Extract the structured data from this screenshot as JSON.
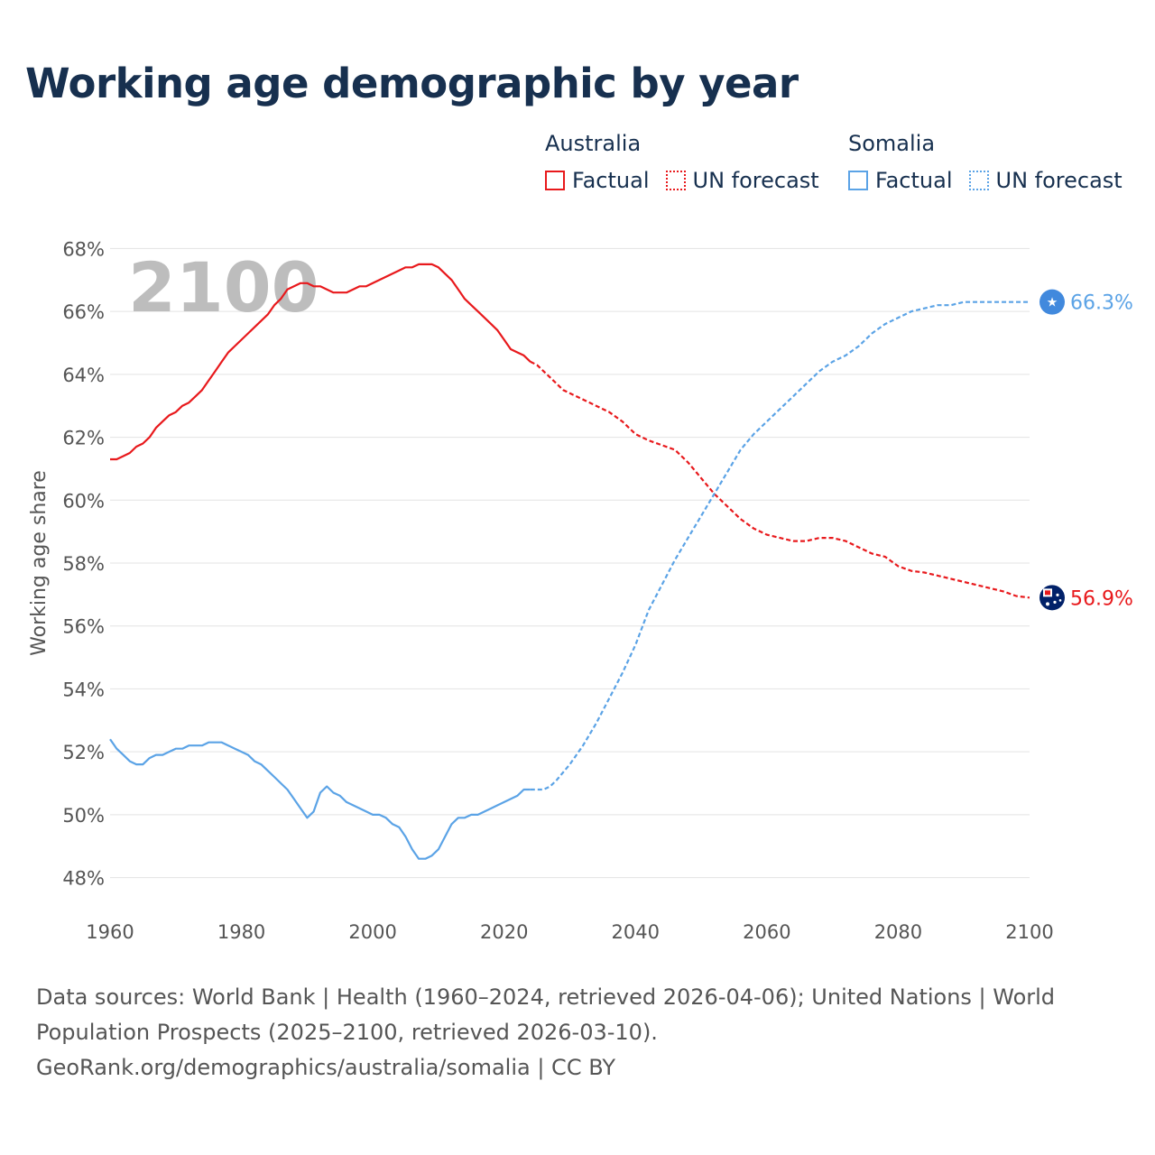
{
  "title": "Working age demographic by year",
  "legend": {
    "groups": [
      {
        "name": "Australia",
        "color": "#e8191c",
        "factual_label": "Factual",
        "forecast_label": "UN forecast"
      },
      {
        "name": "Somalia",
        "color": "#5ba3e6",
        "factual_label": "Factual",
        "forecast_label": "UN forecast"
      }
    ]
  },
  "chart_data": {
    "type": "line",
    "title": "Working age demographic by year",
    "xlabel": "",
    "ylabel": "Working age share",
    "xlim": [
      1960,
      2100
    ],
    "ylim": [
      47.5,
      68.5
    ],
    "x_ticks": [
      1960,
      1980,
      2000,
      2020,
      2040,
      2060,
      2080,
      2100
    ],
    "y_ticks": [
      48,
      50,
      52,
      54,
      56,
      58,
      60,
      62,
      64,
      66,
      68
    ],
    "y_tick_labels": [
      "48%",
      "50%",
      "52%",
      "54%",
      "56%",
      "58%",
      "60%",
      "62%",
      "64%",
      "66%",
      "68%"
    ],
    "grid": true,
    "year_watermark": "2100",
    "factual_end_year": 2024,
    "series": [
      {
        "name": "Australia",
        "color": "#e8191c",
        "end_label": "56.9%",
        "end_icon": "australia-flag-icon",
        "points": [
          [
            1960,
            61.3
          ],
          [
            1961,
            61.3
          ],
          [
            1962,
            61.4
          ],
          [
            1963,
            61.5
          ],
          [
            1964,
            61.7
          ],
          [
            1965,
            61.8
          ],
          [
            1966,
            62.0
          ],
          [
            1967,
            62.3
          ],
          [
            1968,
            62.5
          ],
          [
            1969,
            62.7
          ],
          [
            1970,
            62.8
          ],
          [
            1971,
            63.0
          ],
          [
            1972,
            63.1
          ],
          [
            1973,
            63.3
          ],
          [
            1974,
            63.5
          ],
          [
            1975,
            63.8
          ],
          [
            1976,
            64.1
          ],
          [
            1977,
            64.4
          ],
          [
            1978,
            64.7
          ],
          [
            1979,
            64.9
          ],
          [
            1980,
            65.1
          ],
          [
            1981,
            65.3
          ],
          [
            1982,
            65.5
          ],
          [
            1983,
            65.7
          ],
          [
            1984,
            65.9
          ],
          [
            1985,
            66.2
          ],
          [
            1986,
            66.4
          ],
          [
            1987,
            66.7
          ],
          [
            1988,
            66.8
          ],
          [
            1989,
            66.9
          ],
          [
            1990,
            66.9
          ],
          [
            1991,
            66.8
          ],
          [
            1992,
            66.8
          ],
          [
            1993,
            66.7
          ],
          [
            1994,
            66.6
          ],
          [
            1995,
            66.6
          ],
          [
            1996,
            66.6
          ],
          [
            1997,
            66.7
          ],
          [
            1998,
            66.8
          ],
          [
            1999,
            66.8
          ],
          [
            2000,
            66.9
          ],
          [
            2001,
            67.0
          ],
          [
            2002,
            67.1
          ],
          [
            2003,
            67.2
          ],
          [
            2004,
            67.3
          ],
          [
            2005,
            67.4
          ],
          [
            2006,
            67.4
          ],
          [
            2007,
            67.5
          ],
          [
            2008,
            67.5
          ],
          [
            2009,
            67.5
          ],
          [
            2010,
            67.4
          ],
          [
            2011,
            67.2
          ],
          [
            2012,
            67.0
          ],
          [
            2013,
            66.7
          ],
          [
            2014,
            66.4
          ],
          [
            2015,
            66.2
          ],
          [
            2016,
            66.0
          ],
          [
            2017,
            65.8
          ],
          [
            2018,
            65.6
          ],
          [
            2019,
            65.4
          ],
          [
            2020,
            65.1
          ],
          [
            2021,
            64.8
          ],
          [
            2022,
            64.7
          ],
          [
            2023,
            64.6
          ],
          [
            2024,
            64.4
          ],
          [
            2025,
            64.3
          ],
          [
            2026,
            64.1
          ],
          [
            2027,
            63.9
          ],
          [
            2028,
            63.7
          ],
          [
            2029,
            63.5
          ],
          [
            2030,
            63.4
          ],
          [
            2032,
            63.2
          ],
          [
            2034,
            63.0
          ],
          [
            2036,
            62.8
          ],
          [
            2038,
            62.5
          ],
          [
            2040,
            62.1
          ],
          [
            2042,
            61.9
          ],
          [
            2044,
            61.75
          ],
          [
            2046,
            61.6
          ],
          [
            2048,
            61.2
          ],
          [
            2050,
            60.7
          ],
          [
            2052,
            60.2
          ],
          [
            2054,
            59.8
          ],
          [
            2056,
            59.4
          ],
          [
            2058,
            59.1
          ],
          [
            2060,
            58.9
          ],
          [
            2062,
            58.8
          ],
          [
            2064,
            58.7
          ],
          [
            2066,
            58.7
          ],
          [
            2068,
            58.8
          ],
          [
            2070,
            58.8
          ],
          [
            2072,
            58.7
          ],
          [
            2074,
            58.5
          ],
          [
            2076,
            58.3
          ],
          [
            2078,
            58.2
          ],
          [
            2080,
            57.9
          ],
          [
            2082,
            57.75
          ],
          [
            2084,
            57.7
          ],
          [
            2086,
            57.6
          ],
          [
            2088,
            57.5
          ],
          [
            2090,
            57.4
          ],
          [
            2092,
            57.3
          ],
          [
            2094,
            57.2
          ],
          [
            2096,
            57.1
          ],
          [
            2098,
            56.95
          ],
          [
            2100,
            56.9
          ]
        ]
      },
      {
        "name": "Somalia",
        "color": "#5ba3e6",
        "end_label": "66.3%",
        "end_icon": "somalia-flag-icon",
        "points": [
          [
            1960,
            52.4
          ],
          [
            1961,
            52.1
          ],
          [
            1962,
            51.9
          ],
          [
            1963,
            51.7
          ],
          [
            1964,
            51.6
          ],
          [
            1965,
            51.6
          ],
          [
            1966,
            51.8
          ],
          [
            1967,
            51.9
          ],
          [
            1968,
            51.9
          ],
          [
            1969,
            52.0
          ],
          [
            1970,
            52.1
          ],
          [
            1971,
            52.1
          ],
          [
            1972,
            52.2
          ],
          [
            1973,
            52.2
          ],
          [
            1974,
            52.2
          ],
          [
            1975,
            52.3
          ],
          [
            1976,
            52.3
          ],
          [
            1977,
            52.3
          ],
          [
            1978,
            52.2
          ],
          [
            1979,
            52.1
          ],
          [
            1980,
            52.0
          ],
          [
            1981,
            51.9
          ],
          [
            1982,
            51.7
          ],
          [
            1983,
            51.6
          ],
          [
            1984,
            51.4
          ],
          [
            1985,
            51.2
          ],
          [
            1986,
            51.0
          ],
          [
            1987,
            50.8
          ],
          [
            1988,
            50.5
          ],
          [
            1989,
            50.2
          ],
          [
            1990,
            49.9
          ],
          [
            1991,
            50.1
          ],
          [
            1992,
            50.7
          ],
          [
            1993,
            50.9
          ],
          [
            1994,
            50.7
          ],
          [
            1995,
            50.6
          ],
          [
            1996,
            50.4
          ],
          [
            1997,
            50.3
          ],
          [
            1998,
            50.2
          ],
          [
            1999,
            50.1
          ],
          [
            2000,
            50.0
          ],
          [
            2001,
            50.0
          ],
          [
            2002,
            49.9
          ],
          [
            2003,
            49.7
          ],
          [
            2004,
            49.6
          ],
          [
            2005,
            49.3
          ],
          [
            2006,
            48.9
          ],
          [
            2007,
            48.6
          ],
          [
            2008,
            48.6
          ],
          [
            2009,
            48.7
          ],
          [
            2010,
            48.9
          ],
          [
            2011,
            49.3
          ],
          [
            2012,
            49.7
          ],
          [
            2013,
            49.9
          ],
          [
            2014,
            49.9
          ],
          [
            2015,
            50.0
          ],
          [
            2016,
            50.0
          ],
          [
            2017,
            50.1
          ],
          [
            2018,
            50.2
          ],
          [
            2019,
            50.3
          ],
          [
            2020,
            50.4
          ],
          [
            2021,
            50.5
          ],
          [
            2022,
            50.6
          ],
          [
            2023,
            50.8
          ],
          [
            2024,
            50.8
          ],
          [
            2025,
            50.8
          ],
          [
            2026,
            50.8
          ],
          [
            2027,
            50.9
          ],
          [
            2028,
            51.1
          ],
          [
            2030,
            51.6
          ],
          [
            2032,
            52.2
          ],
          [
            2034,
            52.9
          ],
          [
            2036,
            53.7
          ],
          [
            2038,
            54.5
          ],
          [
            2040,
            55.4
          ],
          [
            2042,
            56.5
          ],
          [
            2044,
            57.3
          ],
          [
            2046,
            58.1
          ],
          [
            2048,
            58.8
          ],
          [
            2050,
            59.5
          ],
          [
            2052,
            60.2
          ],
          [
            2054,
            60.9
          ],
          [
            2056,
            61.6
          ],
          [
            2058,
            62.1
          ],
          [
            2060,
            62.5
          ],
          [
            2062,
            62.9
          ],
          [
            2064,
            63.3
          ],
          [
            2066,
            63.7
          ],
          [
            2068,
            64.1
          ],
          [
            2070,
            64.4
          ],
          [
            2072,
            64.6
          ],
          [
            2074,
            64.9
          ],
          [
            2076,
            65.3
          ],
          [
            2078,
            65.6
          ],
          [
            2080,
            65.8
          ],
          [
            2082,
            66.0
          ],
          [
            2084,
            66.1
          ],
          [
            2086,
            66.2
          ],
          [
            2088,
            66.2
          ],
          [
            2090,
            66.3
          ],
          [
            2092,
            66.3
          ],
          [
            2094,
            66.3
          ],
          [
            2096,
            66.3
          ],
          [
            2098,
            66.3
          ],
          [
            2100,
            66.3
          ]
        ]
      }
    ]
  },
  "footer": {
    "sources": "Data sources: World Bank | Health (1960–2024, retrieved 2026-04-06); United Nations | World Population Prospects (2025–2100, retrieved 2026-03-10).",
    "attribution": "GeoRank.org/demographics/australia/somalia | CC BY"
  }
}
